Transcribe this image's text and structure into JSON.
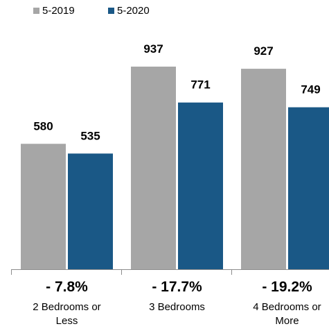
{
  "chart_data": {
    "type": "bar",
    "categories": [
      "2 Bedrooms or Less",
      "3 Bedrooms",
      "4 Bedrooms or More"
    ],
    "category_lines": [
      [
        "2 Bedrooms or",
        "Less"
      ],
      [
        "3 Bedrooms"
      ],
      [
        "4 Bedrooms or",
        "More"
      ]
    ],
    "series": [
      {
        "name": "5-2019",
        "values": [
          580,
          937,
          927
        ],
        "color": "#a6a6a6"
      },
      {
        "name": "5-2020",
        "values": [
          535,
          771,
          749
        ],
        "color": "#1a5886"
      }
    ],
    "data_labels": [
      [
        "580",
        "937",
        "927"
      ],
      [
        "535",
        "771",
        "749"
      ]
    ],
    "change_labels": [
      "- 7.8%",
      "- 17.7%",
      "- 19.2%"
    ],
    "title": "",
    "xlabel": "",
    "ylabel": "",
    "ylim": [
      0,
      1000
    ],
    "legend_position": "top-left",
    "grid": false
  }
}
